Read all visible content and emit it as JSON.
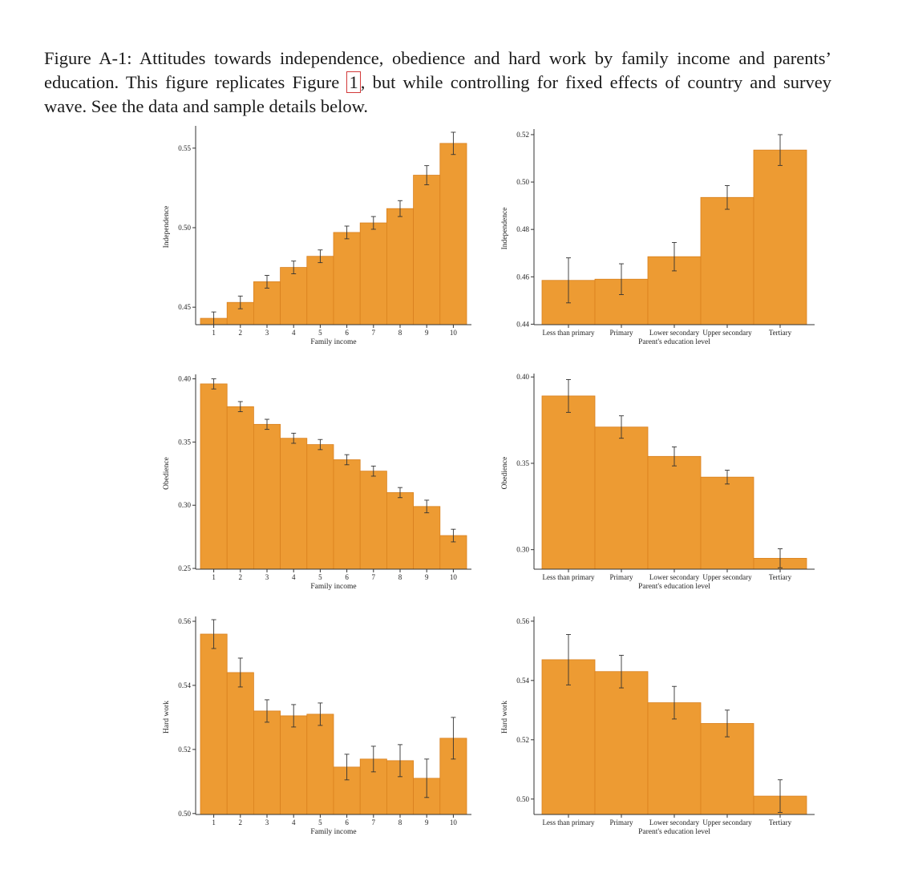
{
  "caption": {
    "part1": "Figure A-1: Attitudes towards independence, obedience and hard work by family income and parents’ education.  This figure replicates Figure ",
    "ref": "1",
    "part2": ", but while controlling for fixed effects of country and survey wave. See the data and sample details below."
  },
  "colors": {
    "bar": "#ED9B33",
    "bar_edge": "#D9801E",
    "axis": "#333333",
    "errorbar": "#333333"
  },
  "chart_data": [
    {
      "id": "income-independence",
      "type": "bar",
      "xlabel": "Family income",
      "ylabel": "Independence",
      "categories": [
        "1",
        "2",
        "3",
        "4",
        "5",
        "6",
        "7",
        "8",
        "9",
        "10"
      ],
      "values": [
        0.443,
        0.453,
        0.466,
        0.475,
        0.482,
        0.497,
        0.503,
        0.512,
        0.533,
        0.553
      ],
      "err": [
        0.004,
        0.004,
        0.004,
        0.004,
        0.004,
        0.004,
        0.004,
        0.005,
        0.006,
        0.007
      ],
      "ylim": [
        0.439,
        0.562
      ],
      "yticks": [
        0.45,
        0.5,
        0.55
      ],
      "ytick_labels": [
        "0.45",
        "0.50",
        "0.55"
      ]
    },
    {
      "id": "education-independence",
      "type": "bar",
      "xlabel": "Parent's education level",
      "ylabel": "Independence",
      "categories": [
        "Less than primary",
        "Primary",
        "Lower secondary",
        "Upper secondary",
        "Tertiary"
      ],
      "values": [
        0.4585,
        0.459,
        0.4685,
        0.4935,
        0.5135
      ],
      "err": [
        0.0095,
        0.0065,
        0.006,
        0.005,
        0.0065
      ],
      "ylim": [
        0.4398,
        0.521
      ],
      "yticks": [
        0.44,
        0.46,
        0.48,
        0.5,
        0.52
      ],
      "ytick_labels": [
        "0.44",
        "0.46",
        "0.48",
        "0.50",
        "0.52"
      ]
    },
    {
      "id": "income-obedience",
      "type": "bar",
      "xlabel": "Family income",
      "ylabel": "Obedience",
      "categories": [
        "1",
        "2",
        "3",
        "4",
        "5",
        "6",
        "7",
        "8",
        "9",
        "10"
      ],
      "values": [
        0.396,
        0.378,
        0.364,
        0.353,
        0.348,
        0.336,
        0.327,
        0.31,
        0.299,
        0.276
      ],
      "err": [
        0.004,
        0.004,
        0.004,
        0.004,
        0.004,
        0.004,
        0.004,
        0.004,
        0.005,
        0.005
      ],
      "ylim": [
        0.2494,
        0.401
      ],
      "yticks": [
        0.25,
        0.3,
        0.35,
        0.4
      ],
      "ytick_labels": [
        "0.25",
        "0.30",
        "0.35",
        "0.40"
      ]
    },
    {
      "id": "education-obedience",
      "type": "bar",
      "xlabel": "Parent's education level",
      "ylabel": "Obedience",
      "categories": [
        "Less than primary",
        "Primary",
        "Lower secondary",
        "Upper secondary",
        "Tertiary"
      ],
      "values": [
        0.389,
        0.371,
        0.354,
        0.342,
        0.295
      ],
      "err": [
        0.0095,
        0.0065,
        0.0055,
        0.004,
        0.0055
      ],
      "ylim": [
        0.2887,
        0.4001
      ],
      "yticks": [
        0.3,
        0.35,
        0.4
      ],
      "ytick_labels": [
        "0.30",
        "0.35",
        "0.40"
      ]
    },
    {
      "id": "income-hardwork",
      "type": "bar",
      "xlabel": "Family income",
      "ylabel": "Hard work",
      "categories": [
        "1",
        "2",
        "3",
        "4",
        "5",
        "6",
        "7",
        "8",
        "9",
        "10"
      ],
      "values": [
        0.556,
        0.544,
        0.532,
        0.5305,
        0.531,
        0.5145,
        0.517,
        0.5165,
        0.511,
        0.5235
      ],
      "err": [
        0.0045,
        0.0045,
        0.0035,
        0.0035,
        0.0035,
        0.004,
        0.004,
        0.005,
        0.006,
        0.0065
      ],
      "ylim": [
        0.4997,
        0.5605
      ],
      "yticks": [
        0.5,
        0.52,
        0.54,
        0.56
      ],
      "ytick_labels": [
        "0.50",
        "0.52",
        "0.54",
        "0.56"
      ]
    },
    {
      "id": "education-hardwork",
      "type": "bar",
      "xlabel": "Parent's education level",
      "ylabel": "Hard work",
      "categories": [
        "Less than primary",
        "Primary",
        "Lower secondary",
        "Upper secondary",
        "Tertiary"
      ],
      "values": [
        0.547,
        0.543,
        0.5325,
        0.5255,
        0.501
      ],
      "err": [
        0.0085,
        0.0055,
        0.0055,
        0.0045,
        0.0055
      ],
      "ylim": [
        0.4948,
        0.5605
      ],
      "yticks": [
        0.5,
        0.52,
        0.54,
        0.56
      ],
      "ytick_labels": [
        "0.50",
        "0.52",
        "0.54",
        "0.56"
      ]
    }
  ]
}
